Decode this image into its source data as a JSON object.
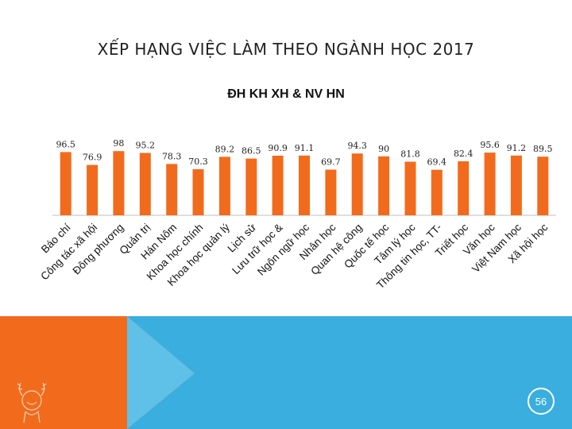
{
  "slide": {
    "title": "XẾP HẠNG VIỆC LÀM THEO NGÀNH HỌC 2017",
    "page_number": "56"
  },
  "colors": {
    "bar": "#F26B1D",
    "band_orange": "#F26B1D",
    "band_blue": "#3AAEDE",
    "band_blue_light": "#5FC0E8"
  },
  "chart_data": {
    "type": "bar",
    "title": "ĐH KH XH & NV HN",
    "xlabel": "",
    "ylabel": "",
    "categories": [
      "Báo chí",
      "Công tác xã hội",
      "Đông phương",
      "Quản trị",
      "Hán Nôm",
      "Khoa học chính",
      "Khoa học quản lý",
      "Lịch sử",
      "Lưu trữ học &",
      "Ngôn ngữ học",
      "Nhân học",
      "Quan hệ công",
      "Quốc tế học",
      "Tâm lý học",
      "Thông tin học,  TT-",
      "Triết học",
      "Văn học",
      "Việt Nam học",
      "Xã hội  học"
    ],
    "values": [
      96.5,
      76.9,
      98,
      95.2,
      78.3,
      70.3,
      89.2,
      86.5,
      90.9,
      91.1,
      69.7,
      94.3,
      90,
      81.8,
      69.4,
      82.4,
      95.6,
      91.2,
      89.5
    ],
    "data_labels": [
      "96.5",
      "76.9",
      "98",
      "95.2",
      "78.3",
      "70.3",
      "89.2",
      "86.5",
      "90.9",
      "91.1",
      "69.7",
      "94.3",
      "90",
      "81.8",
      "69.4",
      "82.4",
      "95.6",
      "91.2",
      "89.5"
    ],
    "ylim": [
      0,
      100
    ],
    "grid": false,
    "legend": "none"
  },
  "logo_icon": "laurel-head-logo-icon"
}
